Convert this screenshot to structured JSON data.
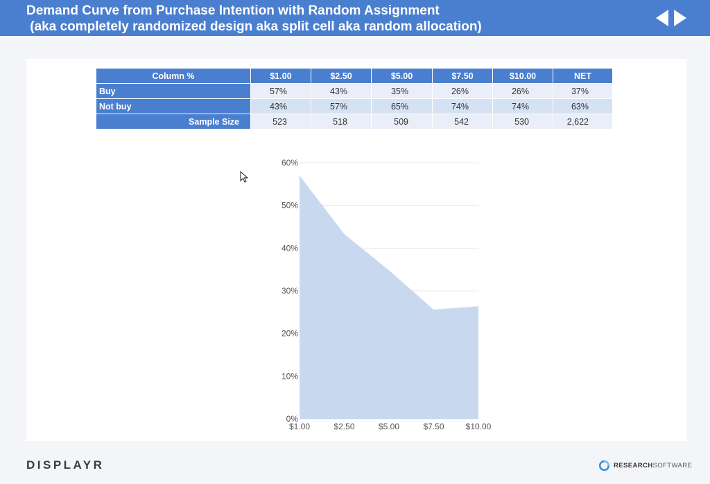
{
  "header": {
    "title": "Demand Curve from Purchase Intention with Random Assignment\n (aka completely randomized design aka split cell aka random allocation)"
  },
  "table": {
    "corner": "Column %",
    "columns": [
      "$1.00",
      "$2.50",
      "$5.00",
      "$7.50",
      "$10.00",
      "NET"
    ],
    "rows": [
      {
        "label": "Buy",
        "values": [
          "57%",
          "43%",
          "35%",
          "26%",
          "26%",
          "37%"
        ]
      },
      {
        "label": "Not buy",
        "values": [
          "43%",
          "57%",
          "65%",
          "74%",
          "74%",
          "63%"
        ]
      },
      {
        "label": "Sample Size",
        "values": [
          "523",
          "518",
          "509",
          "542",
          "530",
          "2,622"
        ]
      }
    ]
  },
  "chart_data": {
    "type": "area",
    "categories": [
      "$1.00",
      "$2.50",
      "$5.00",
      "$7.50",
      "$10.00"
    ],
    "series": [
      {
        "values": [
          57,
          43.3,
          34.8,
          25.6,
          26.4
        ]
      }
    ],
    "yticks": [
      "0%",
      "10%",
      "20%",
      "30%",
      "40%",
      "50%",
      "60%"
    ],
    "ylim": [
      0,
      60
    ],
    "grid": true,
    "fill_color": "#c8d9ef",
    "grid_color": "#e6e8ec"
  },
  "footer": {
    "left_logo": "DISPLAYR",
    "right_logo_bold": "RESEARCH",
    "right_logo_rest": "SOFTWARE"
  },
  "colors": {
    "accent": "#4a7fd0",
    "background": "#f4f5f9"
  }
}
